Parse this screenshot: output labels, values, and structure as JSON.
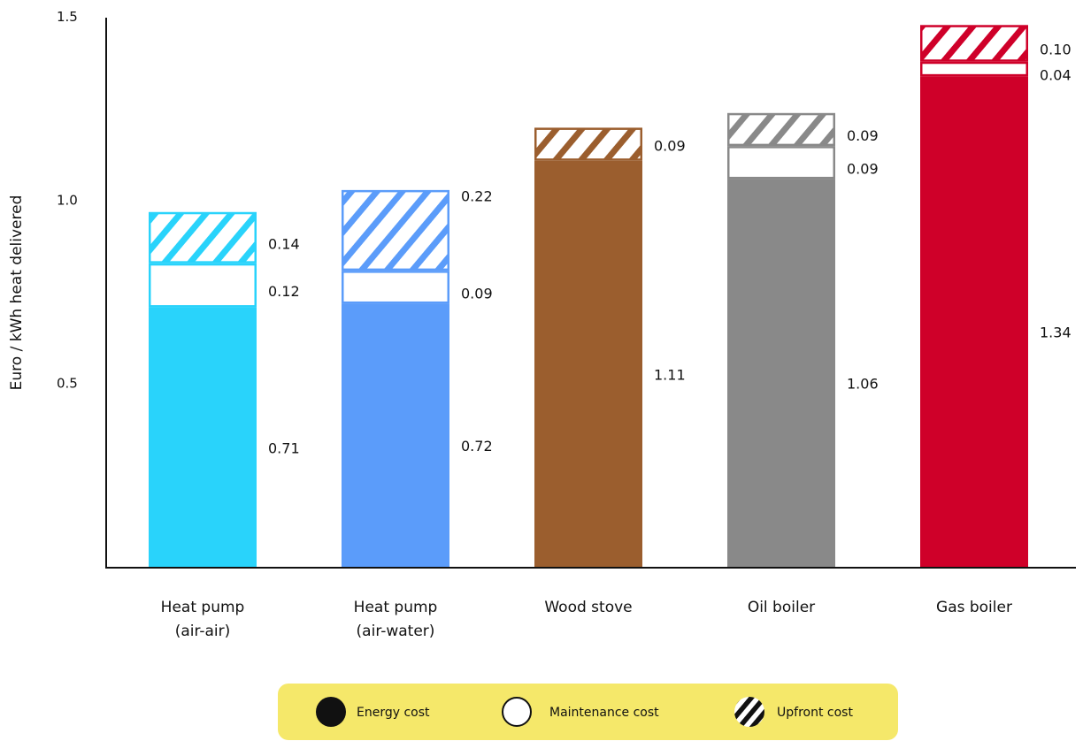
{
  "chart_data": {
    "type": "bar",
    "stacked": true,
    "title": "",
    "xlabel": "",
    "ylabel": "Euro / kWh heat delivered",
    "ylim": [
      0,
      1.5
    ],
    "yticks": [
      "0.5",
      "1.0",
      "1.5"
    ],
    "grid": false,
    "legend_position": "bottom",
    "categories": [
      [
        "Heat pump",
        "(air-air)"
      ],
      [
        "Heat pump",
        "(air-water)"
      ],
      [
        "Wood stove"
      ],
      [
        "Oil boiler"
      ],
      [
        "Gas boiler"
      ]
    ],
    "colors": [
      "#29d3fb",
      "#5b9cfa",
      "#9b5e2e",
      "#898989",
      "#cf0029"
    ],
    "series": [
      {
        "name": "Energy cost",
        "style": "solid",
        "values": [
          0.71,
          0.72,
          1.11,
          1.06,
          1.34
        ],
        "labels": [
          "0.71",
          "0.72",
          "1.11",
          "1.06",
          "1.34"
        ]
      },
      {
        "name": "Maintenance cost",
        "style": "hollow",
        "values": [
          0.12,
          0.09,
          0,
          0.09,
          0.04
        ],
        "labels": [
          "0.12",
          "0.09",
          "",
          "0.09",
          "0.04"
        ]
      },
      {
        "name": "Upfront cost",
        "style": "hatched",
        "values": [
          0.14,
          0.22,
          0.09,
          0.09,
          0.1
        ],
        "labels": [
          "0.14",
          "0.22",
          "0.09",
          "0.09",
          "0.10"
        ]
      }
    ],
    "legend": {
      "background": "#f5e86a",
      "items": [
        {
          "label": "Energy cost",
          "icon": "filled-circle-icon"
        },
        {
          "label": "Maintenance cost",
          "icon": "hollow-circle-icon"
        },
        {
          "label": "Upfront cost",
          "icon": "hatched-circle-icon"
        }
      ]
    }
  }
}
